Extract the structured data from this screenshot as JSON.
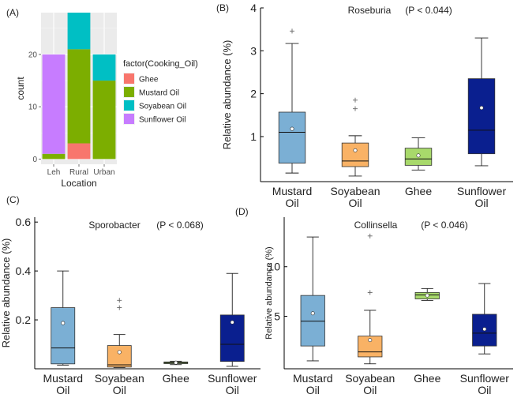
{
  "figure_title": "",
  "chart_data": [
    {
      "panel_label": "(A)",
      "type": "bar",
      "stacked": true,
      "title": "",
      "xlabel": "Location",
      "ylabel": "count",
      "categories": [
        "Leh",
        "Rural",
        "Urban"
      ],
      "ylim": [
        -1,
        28
      ],
      "yticks": [
        0,
        10,
        20
      ],
      "grid": true,
      "legend": {
        "title": "factor(Cooking_Oil)",
        "position": "right"
      },
      "series": [
        {
          "name": "Ghee",
          "color": "#f8766d",
          "values": [
            0,
            3,
            0
          ]
        },
        {
          "name": "Mustard Oil",
          "color": "#7cae00",
          "values": [
            1,
            18,
            15
          ]
        },
        {
          "name": "Soyabean Oil",
          "color": "#00bfc4",
          "values": [
            0,
            7,
            5
          ]
        },
        {
          "name": "Sunflower Oil",
          "color": "#c77cff",
          "values": [
            19,
            0,
            0
          ]
        }
      ]
    },
    {
      "panel_label": "(B)",
      "type": "box",
      "title": "Roseburia",
      "pvalue": "(P < 0.044)",
      "xlabel": "",
      "ylabel": "Relative abundance (%)",
      "categories": [
        "Mustard\nOil",
        "Soyabean\nOil",
        "Ghee",
        "Sunflower\nOil"
      ],
      "ylim": [
        -0.05,
        4
      ],
      "yticks": [
        1,
        2,
        3,
        4
      ],
      "grid": false,
      "boxes": [
        {
          "min": 0.15,
          "q1": 0.38,
          "median": 1.1,
          "q3": 1.57,
          "max": 3.17,
          "mean": 1.18,
          "outliers": [
            3.46
          ],
          "color": "#7bafd4"
        },
        {
          "min": 0.08,
          "q1": 0.3,
          "median": 0.43,
          "q3": 0.85,
          "max": 1.02,
          "mean": 0.68,
          "outliers": [
            1.65,
            1.85
          ],
          "color": "#f9b265"
        },
        {
          "min": 0.22,
          "q1": 0.33,
          "median": 0.48,
          "q3": 0.73,
          "max": 0.97,
          "mean": 0.56,
          "outliers": [],
          "color": "#a8d96b"
        },
        {
          "min": 0.32,
          "q1": 0.6,
          "median": 1.15,
          "q3": 2.35,
          "max": 3.3,
          "mean": 1.67,
          "outliers": [],
          "color": "#0a1f8f"
        }
      ]
    },
    {
      "panel_label": "(C)",
      "type": "box",
      "title": "Sporobacter",
      "pvalue": "(P < 0.068)",
      "xlabel": "",
      "ylabel": "Relative abundance (%)",
      "categories": [
        "Mustard\nOil",
        "Soyabean\nOil",
        "Ghee",
        "Sunflower\nOil"
      ],
      "ylim": [
        0,
        0.62
      ],
      "yticks": [
        0.2,
        0.4,
        0.6
      ],
      "grid": false,
      "boxes": [
        {
          "min": 0.015,
          "q1": 0.02,
          "median": 0.085,
          "q3": 0.25,
          "max": 0.4,
          "mean": 0.187,
          "outliers": [],
          "color": "#7bafd4"
        },
        {
          "min": 0.005,
          "q1": 0.007,
          "median": 0.016,
          "q3": 0.095,
          "max": 0.14,
          "mean": 0.068,
          "outliers": [
            0.25,
            0.28
          ],
          "color": "#f9b265"
        },
        {
          "min": 0.017,
          "q1": 0.021,
          "median": 0.025,
          "q3": 0.028,
          "max": 0.031,
          "mean": 0.025,
          "outliers": [],
          "color": "#a8d96b"
        },
        {
          "min": 0.01,
          "q1": 0.03,
          "median": 0.1,
          "q3": 0.22,
          "max": 0.39,
          "mean": 0.19,
          "outliers": [],
          "color": "#0a1f8f"
        }
      ]
    },
    {
      "panel_label": "(D)",
      "type": "box",
      "title": "Collinsella",
      "pvalue": "(P < 0.046)",
      "xlabel": "",
      "ylabel": "Relative abundance (%)",
      "categories": [
        "Mustard\nOil",
        "Soyabean\nOil",
        "Ghee",
        "Sunflower\nOil"
      ],
      "ylim": [
        -0.3,
        15
      ],
      "yticks": [
        5,
        10
      ],
      "grid": false,
      "boxes": [
        {
          "min": 0.5,
          "q1": 2.0,
          "median": 4.5,
          "q3": 7.1,
          "max": 13.0,
          "mean": 5.3,
          "outliers": [],
          "color": "#7bafd4"
        },
        {
          "min": 0.2,
          "q1": 0.9,
          "median": 1.4,
          "q3": 3.0,
          "max": 5.6,
          "mean": 2.6,
          "outliers": [
            7.4,
            13.1
          ],
          "color": "#f9b265"
        },
        {
          "min": 6.6,
          "q1": 6.75,
          "median": 7.15,
          "q3": 7.4,
          "max": 7.8,
          "mean": 7.1,
          "outliers": [],
          "color": "#a8d96b"
        },
        {
          "min": 1.2,
          "q1": 2.0,
          "median": 3.3,
          "q3": 5.2,
          "max": 8.3,
          "mean": 3.7,
          "outliers": [],
          "color": "#0a1f8f"
        }
      ]
    }
  ]
}
